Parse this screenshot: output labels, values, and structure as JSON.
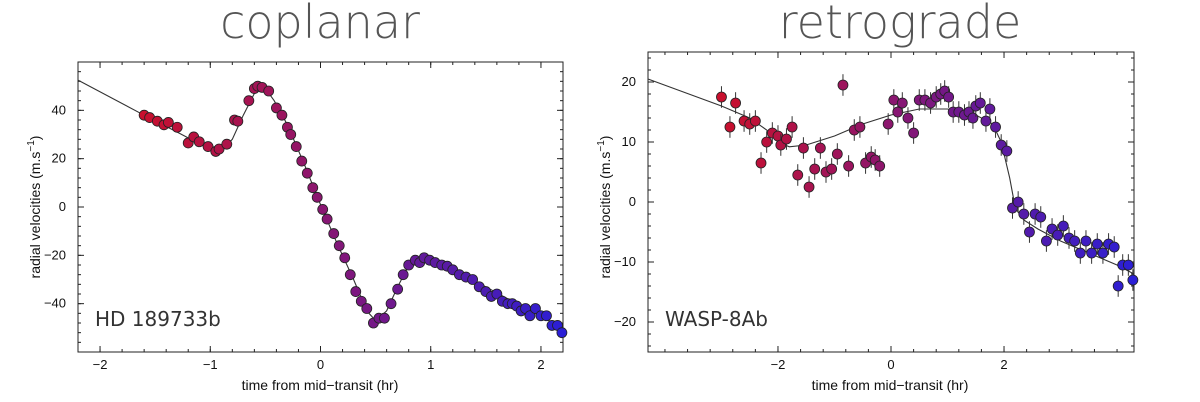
{
  "chart_data": [
    {
      "type": "scatter",
      "title": "coplanar",
      "annotation": "HD 189733b",
      "xlabel": "time from mid−transit (hr)",
      "ylabel": "radial velocities (m.s",
      "ylabel_sup": "−1",
      "ylabel_end": ")",
      "xlim": [
        -2.2,
        2.2
      ],
      "ylim": [
        -60,
        60
      ],
      "xticks": [
        -2,
        -1,
        0,
        1,
        2
      ],
      "xtick_labels": [
        "−2",
        "−1",
        "0",
        "1",
        "2"
      ],
      "yticks": [
        -40,
        -20,
        0,
        20,
        40
      ],
      "ytick_labels": [
        "−40",
        "−20",
        "0",
        "20",
        "40"
      ],
      "grid": false,
      "color_start": "#c8102e",
      "color_end": "#2b1fd6",
      "points": [
        {
          "x": -1.6,
          "y": 38
        },
        {
          "x": -1.55,
          "y": 37
        },
        {
          "x": -1.48,
          "y": 35.5
        },
        {
          "x": -1.42,
          "y": 34
        },
        {
          "x": -1.38,
          "y": 35
        },
        {
          "x": -1.3,
          "y": 33
        },
        {
          "x": -1.2,
          "y": 26.5
        },
        {
          "x": -1.15,
          "y": 29
        },
        {
          "x": -1.1,
          "y": 27
        },
        {
          "x": -1.02,
          "y": 25
        },
        {
          "x": -0.95,
          "y": 23
        },
        {
          "x": -0.92,
          "y": 24
        },
        {
          "x": -0.85,
          "y": 26
        },
        {
          "x": -0.78,
          "y": 36
        },
        {
          "x": -0.75,
          "y": 35.5
        },
        {
          "x": -0.65,
          "y": 44
        },
        {
          "x": -0.6,
          "y": 49
        },
        {
          "x": -0.57,
          "y": 50
        },
        {
          "x": -0.53,
          "y": 49.5
        },
        {
          "x": -0.47,
          "y": 48
        },
        {
          "x": -0.4,
          "y": 41
        },
        {
          "x": -0.35,
          "y": 38
        },
        {
          "x": -0.3,
          "y": 33
        },
        {
          "x": -0.27,
          "y": 30
        },
        {
          "x": -0.22,
          "y": 25
        },
        {
          "x": -0.17,
          "y": 19
        },
        {
          "x": -0.12,
          "y": 14
        },
        {
          "x": -0.07,
          "y": 8
        },
        {
          "x": -0.03,
          "y": 4
        },
        {
          "x": 0.02,
          "y": -1
        },
        {
          "x": 0.06,
          "y": -5
        },
        {
          "x": 0.12,
          "y": -11
        },
        {
          "x": 0.17,
          "y": -16
        },
        {
          "x": 0.22,
          "y": -21
        },
        {
          "x": 0.27,
          "y": -28
        },
        {
          "x": 0.32,
          "y": -35
        },
        {
          "x": 0.37,
          "y": -39
        },
        {
          "x": 0.42,
          "y": -42
        },
        {
          "x": 0.48,
          "y": -48
        },
        {
          "x": 0.53,
          "y": -46
        },
        {
          "x": 0.58,
          "y": -46
        },
        {
          "x": 0.64,
          "y": -40
        },
        {
          "x": 0.7,
          "y": -34
        },
        {
          "x": 0.75,
          "y": -28
        },
        {
          "x": 0.8,
          "y": -24
        },
        {
          "x": 0.86,
          "y": -22
        },
        {
          "x": 0.9,
          "y": -23
        },
        {
          "x": 0.94,
          "y": -21
        },
        {
          "x": 0.99,
          "y": -22
        },
        {
          "x": 1.04,
          "y": -23
        },
        {
          "x": 1.1,
          "y": -24
        },
        {
          "x": 1.15,
          "y": -24.5
        },
        {
          "x": 1.2,
          "y": -26
        },
        {
          "x": 1.26,
          "y": -28
        },
        {
          "x": 1.32,
          "y": -29
        },
        {
          "x": 1.38,
          "y": -30
        },
        {
          "x": 1.44,
          "y": -33
        },
        {
          "x": 1.5,
          "y": -35
        },
        {
          "x": 1.55,
          "y": -37
        },
        {
          "x": 1.6,
          "y": -36
        },
        {
          "x": 1.65,
          "y": -39
        },
        {
          "x": 1.7,
          "y": -40
        },
        {
          "x": 1.74,
          "y": -40
        },
        {
          "x": 1.78,
          "y": -41
        },
        {
          "x": 1.82,
          "y": -43
        },
        {
          "x": 1.86,
          "y": -42
        },
        {
          "x": 1.9,
          "y": -45
        },
        {
          "x": 1.95,
          "y": -42
        },
        {
          "x": 2.0,
          "y": -45
        },
        {
          "x": 2.05,
          "y": -45
        },
        {
          "x": 2.1,
          "y": -49
        },
        {
          "x": 2.15,
          "y": -49
        },
        {
          "x": 2.19,
          "y": -52
        }
      ],
      "model": [
        [
          -2.2,
          52.5
        ],
        [
          -1.6,
          38
        ],
        [
          -1.3,
          31
        ],
        [
          -1.05,
          25
        ],
        [
          -0.9,
          23
        ],
        [
          -0.8,
          28
        ],
        [
          -0.7,
          38
        ],
        [
          -0.6,
          47
        ],
        [
          -0.55,
          49
        ],
        [
          -0.5,
          49
        ],
        [
          -0.42,
          44
        ],
        [
          -0.3,
          34
        ],
        [
          -0.15,
          18
        ],
        [
          0.0,
          1
        ],
        [
          0.15,
          -15
        ],
        [
          0.3,
          -30
        ],
        [
          0.42,
          -43
        ],
        [
          0.5,
          -47
        ],
        [
          0.6,
          -43
        ],
        [
          0.7,
          -33
        ],
        [
          0.78,
          -26
        ],
        [
          0.86,
          -23
        ],
        [
          0.95,
          -22
        ],
        [
          1.1,
          -24
        ],
        [
          1.3,
          -28
        ],
        [
          1.5,
          -33
        ],
        [
          1.7,
          -38
        ],
        [
          1.9,
          -43
        ],
        [
          2.2,
          -50
        ]
      ]
    },
    {
      "type": "scatter",
      "title": "retrograde",
      "annotation": "WASP-8Ab",
      "xlabel": "time from mid−transit (hr)",
      "ylabel": "radial velocities (m.s",
      "ylabel_sup": "−1",
      "ylabel_end": ")",
      "xlim": [
        -4.3,
        4.3
      ],
      "ylim": [
        -25,
        25
      ],
      "xticks": [
        -2,
        0,
        2
      ],
      "xtick_labels": [
        "−2",
        "0",
        "2"
      ],
      "yticks": [
        -20,
        -10,
        0,
        10,
        20
      ],
      "ytick_labels": [
        "−20",
        "−10",
        "0",
        "10",
        "20"
      ],
      "grid": false,
      "color_start": "#c8102e",
      "color_end": "#2b1fd6",
      "points": [
        {
          "x": -3.0,
          "y": 17.5,
          "err": 1.8
        },
        {
          "x": -2.85,
          "y": 12.5,
          "err": 1.8
        },
        {
          "x": -2.75,
          "y": 16.5,
          "err": 1.8
        },
        {
          "x": -2.6,
          "y": 13.5,
          "err": 1.8
        },
        {
          "x": -2.5,
          "y": 13,
          "err": 1.8
        },
        {
          "x": -2.4,
          "y": 13.5,
          "err": 1.8
        },
        {
          "x": -2.3,
          "y": 6.5,
          "err": 1.8
        },
        {
          "x": -2.2,
          "y": 10,
          "err": 1.8
        },
        {
          "x": -2.1,
          "y": 11.5,
          "err": 1.8
        },
        {
          "x": -2.0,
          "y": 11,
          "err": 1.8
        },
        {
          "x": -1.95,
          "y": 9.5,
          "err": 1.8
        },
        {
          "x": -1.85,
          "y": 10.5,
          "err": 1.8
        },
        {
          "x": -1.75,
          "y": 12.5,
          "err": 1.8
        },
        {
          "x": -1.65,
          "y": 4.5,
          "err": 1.8
        },
        {
          "x": -1.55,
          "y": 9,
          "err": 1.8
        },
        {
          "x": -1.45,
          "y": 2.5,
          "err": 1.8
        },
        {
          "x": -1.35,
          "y": 5.5,
          "err": 1.8
        },
        {
          "x": -1.25,
          "y": 9,
          "err": 1.8
        },
        {
          "x": -1.15,
          "y": 5,
          "err": 1.8
        },
        {
          "x": -1.05,
          "y": 5.5,
          "err": 1.8
        },
        {
          "x": -0.95,
          "y": 8,
          "err": 1.8
        },
        {
          "x": -0.85,
          "y": 19.5,
          "err": 1.8
        },
        {
          "x": -0.75,
          "y": 6,
          "err": 1.8
        },
        {
          "x": -0.65,
          "y": 12,
          "err": 1.8
        },
        {
          "x": -0.55,
          "y": 12.5,
          "err": 1.8
        },
        {
          "x": -0.45,
          "y": 6.5,
          "err": 1.8
        },
        {
          "x": -0.35,
          "y": 7.5,
          "err": 1.8
        },
        {
          "x": -0.28,
          "y": 7,
          "err": 1.8
        },
        {
          "x": -0.2,
          "y": 6,
          "err": 1.8
        },
        {
          "x": -0.05,
          "y": 13,
          "err": 1.8
        },
        {
          "x": 0.05,
          "y": 17,
          "err": 1.8
        },
        {
          "x": 0.12,
          "y": 15,
          "err": 1.8
        },
        {
          "x": 0.2,
          "y": 16.5,
          "err": 1.8
        },
        {
          "x": 0.3,
          "y": 14,
          "err": 1.8
        },
        {
          "x": 0.4,
          "y": 11.5,
          "err": 1.8
        },
        {
          "x": 0.5,
          "y": 17,
          "err": 1.8
        },
        {
          "x": 0.6,
          "y": 17,
          "err": 1.8
        },
        {
          "x": 0.7,
          "y": 16.5,
          "err": 1.8
        },
        {
          "x": 0.8,
          "y": 17.5,
          "err": 1.8
        },
        {
          "x": 0.88,
          "y": 18,
          "err": 1.8
        },
        {
          "x": 0.95,
          "y": 18.5,
          "err": 1.8
        },
        {
          "x": 1.02,
          "y": 17.5,
          "err": 1.8
        },
        {
          "x": 1.1,
          "y": 15,
          "err": 1.8
        },
        {
          "x": 1.2,
          "y": 15,
          "err": 1.8
        },
        {
          "x": 1.3,
          "y": 14.5,
          "err": 1.8
        },
        {
          "x": 1.38,
          "y": 15,
          "err": 1.8
        },
        {
          "x": 1.45,
          "y": 14,
          "err": 1.8
        },
        {
          "x": 1.5,
          "y": 16,
          "err": 1.8
        },
        {
          "x": 1.58,
          "y": 16.5,
          "err": 1.8
        },
        {
          "x": 1.68,
          "y": 13.5,
          "err": 1.8
        },
        {
          "x": 1.75,
          "y": 15.5,
          "err": 1.8
        },
        {
          "x": 1.85,
          "y": 12.5,
          "err": 1.8
        },
        {
          "x": 1.95,
          "y": 9.5,
          "err": 1.8
        },
        {
          "x": 2.05,
          "y": 8.5,
          "err": 1.8
        },
        {
          "x": 2.15,
          "y": -1,
          "err": 1.8
        },
        {
          "x": 2.25,
          "y": 0,
          "err": 1.8
        },
        {
          "x": 2.35,
          "y": -2,
          "err": 1.8
        },
        {
          "x": 2.45,
          "y": -5,
          "err": 1.8
        },
        {
          "x": 2.55,
          "y": -2,
          "err": 1.8
        },
        {
          "x": 2.65,
          "y": -2.5,
          "err": 1.8
        },
        {
          "x": 2.75,
          "y": -6.5,
          "err": 1.8
        },
        {
          "x": 2.85,
          "y": -4.5,
          "err": 1.8
        },
        {
          "x": 2.95,
          "y": -5.5,
          "err": 1.8
        },
        {
          "x": 3.05,
          "y": -4,
          "err": 1.8
        },
        {
          "x": 3.15,
          "y": -6,
          "err": 1.8
        },
        {
          "x": 3.25,
          "y": -6.5,
          "err": 1.8
        },
        {
          "x": 3.35,
          "y": -8.5,
          "err": 1.8
        },
        {
          "x": 3.45,
          "y": -6.5,
          "err": 1.8
        },
        {
          "x": 3.55,
          "y": -8.5,
          "err": 1.8
        },
        {
          "x": 3.65,
          "y": -7,
          "err": 1.8
        },
        {
          "x": 3.75,
          "y": -8.5,
          "err": 1.8
        },
        {
          "x": 3.85,
          "y": -7,
          "err": 1.8
        },
        {
          "x": 3.95,
          "y": -7.5,
          "err": 1.8
        },
        {
          "x": 4.02,
          "y": -14,
          "err": 1.8
        },
        {
          "x": 4.1,
          "y": -10.5,
          "err": 1.8
        },
        {
          "x": 4.2,
          "y": -10.5,
          "err": 1.8
        },
        {
          "x": 4.28,
          "y": -13,
          "err": 1.8
        }
      ],
      "model": [
        [
          -4.3,
          20.5
        ],
        [
          -3.0,
          16
        ],
        [
          -2.5,
          14
        ],
        [
          -2.2,
          12
        ],
        [
          -2.0,
          10
        ],
        [
          -1.8,
          9.2
        ],
        [
          -1.5,
          9.5
        ],
        [
          -1.0,
          11
        ],
        [
          -0.5,
          13
        ],
        [
          0.0,
          14.5
        ],
        [
          0.5,
          15.5
        ],
        [
          1.0,
          15.5
        ],
        [
          1.5,
          14.5
        ],
        [
          1.8,
          13
        ],
        [
          1.95,
          10
        ],
        [
          2.1,
          4
        ],
        [
          2.2,
          -1
        ],
        [
          2.35,
          -3
        ],
        [
          2.6,
          -4.5
        ],
        [
          3.0,
          -6.5
        ],
        [
          3.5,
          -8.5
        ],
        [
          4.0,
          -10.5
        ],
        [
          4.3,
          -12
        ]
      ]
    }
  ]
}
